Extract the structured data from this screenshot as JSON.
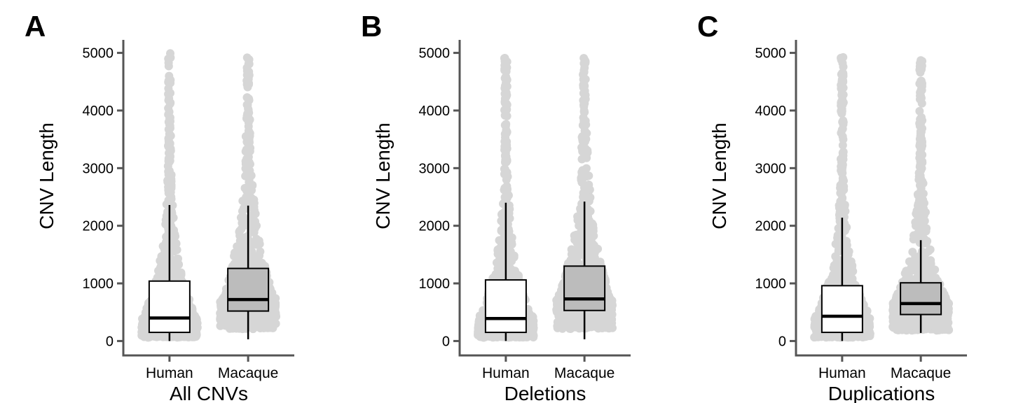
{
  "chart_data": [
    {
      "type": "box",
      "panel_label": "A",
      "xlabel": "All CNVs",
      "ylabel": "CNV Length",
      "ylim": [
        -250,
        5250
      ],
      "yticks": [
        0,
        1000,
        2000,
        3000,
        4000,
        5000
      ],
      "categories": [
        "Human",
        "Macaque"
      ],
      "boxes": [
        {
          "category": "Human",
          "q1": 150,
          "median": 400,
          "q3": 1040,
          "whisker_low": 0,
          "whisker_high": 2360,
          "box_color": "#ffffff",
          "point_max": 5000
        },
        {
          "category": "Macaque",
          "q1": 520,
          "median": 720,
          "q3": 1260,
          "whisker_low": 30,
          "whisker_high": 2350,
          "box_color": "#aaaaaa",
          "point_max": 4970
        }
      ]
    },
    {
      "type": "box",
      "panel_label": "B",
      "xlabel": "Deletions",
      "ylabel": "CNV Length",
      "ylim": [
        -250,
        5250
      ],
      "yticks": [
        0,
        1000,
        2000,
        3000,
        4000,
        5000
      ],
      "categories": [
        "Human",
        "Macaque"
      ],
      "boxes": [
        {
          "category": "Human",
          "q1": 150,
          "median": 390,
          "q3": 1060,
          "whisker_low": 0,
          "whisker_high": 2400,
          "box_color": "#ffffff",
          "point_max": 5000
        },
        {
          "category": "Macaque",
          "q1": 530,
          "median": 730,
          "q3": 1300,
          "whisker_low": 30,
          "whisker_high": 2420,
          "box_color": "#aaaaaa",
          "point_max": 4960
        }
      ]
    },
    {
      "type": "box",
      "panel_label": "C",
      "xlabel": "Duplications",
      "ylabel": "CNV Length",
      "ylim": [
        -250,
        5250
      ],
      "yticks": [
        0,
        1000,
        2000,
        3000,
        4000,
        5000
      ],
      "categories": [
        "Human",
        "Macaque"
      ],
      "boxes": [
        {
          "category": "Human",
          "q1": 150,
          "median": 430,
          "q3": 960,
          "whisker_low": 0,
          "whisker_high": 2140,
          "box_color": "#ffffff",
          "point_max": 4970
        },
        {
          "category": "Macaque",
          "q1": 460,
          "median": 650,
          "q3": 1010,
          "whisker_low": 140,
          "whisker_high": 1750,
          "box_color": "#aaaaaa",
          "point_max": 4870,
          "outliers": [
            4870,
            4250,
            3850,
            3780,
            3600,
            3560,
            3450,
            3380,
            3330,
            3220,
            3050,
            2960,
            2820,
            2680,
            2600,
            2500,
            2420,
            2320,
            2200,
            2120,
            2060,
            1980,
            1900,
            1820
          ]
        }
      ]
    }
  ],
  "colors": {
    "points": "#d6d6d6",
    "axis": "#555555",
    "box_stroke": "#000000"
  }
}
